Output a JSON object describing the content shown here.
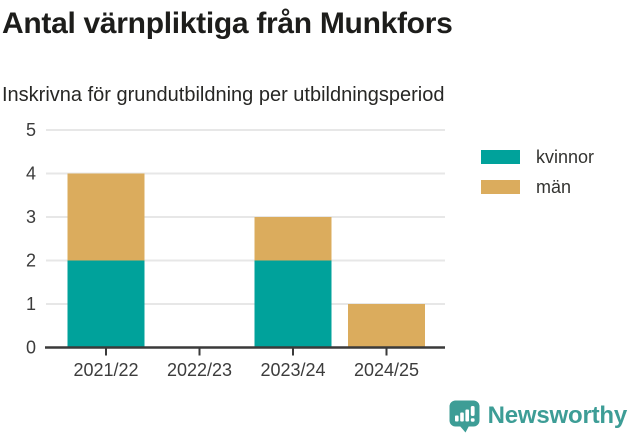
{
  "title": "Antal värnpliktiga från Munkfors",
  "subtitle": "Inskrivna för grundutbildning per utbildningsperiod",
  "chart_data": {
    "type": "bar",
    "stacked": true,
    "title": "Antal värnpliktiga från Munkfors",
    "subtitle": "Inskrivna för grundutbildning per utbildningsperiod",
    "categories": [
      "2021/22",
      "2022/23",
      "2023/24",
      "2024/25"
    ],
    "series": [
      {
        "name": "kvinnor",
        "color": "#00A29B",
        "values": [
          2,
          0,
          2,
          0
        ]
      },
      {
        "name": "män",
        "color": "#DBAC5D",
        "values": [
          2,
          0,
          1,
          1
        ]
      }
    ],
    "totals": [
      4,
      0,
      3,
      1
    ],
    "xlabel": "",
    "ylabel": "",
    "ylim": [
      0,
      5
    ],
    "yticks": [
      0,
      1,
      2,
      3,
      4,
      5
    ],
    "grid": "horizontal",
    "legend_position": "top-right"
  },
  "style": {
    "grid_color": "#e7e7e7",
    "axis_color": "#3a3a3a",
    "tick_label_color": "#3c3c3c",
    "brand_color": "#3D9D96"
  },
  "footer": {
    "brand": "Newsworthy"
  }
}
